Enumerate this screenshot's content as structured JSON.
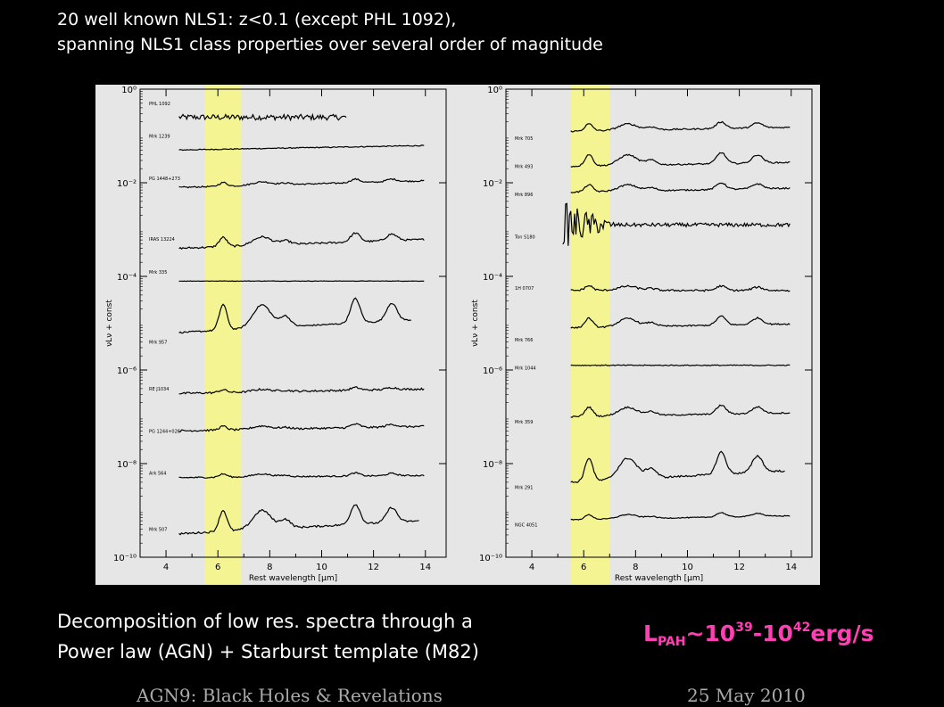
{
  "header": {
    "line1": "20 well known NLS1: z<0.1 (except PHL 1092),",
    "line2": "spanning NLS1 class properties over several order of magnitude"
  },
  "caption": {
    "line1": "Decomposition of low res. spectra through a",
    "line2": "Power law (AGN) + Starburst template (M82)"
  },
  "lpah": {
    "base": "L",
    "sub": "PAH",
    "tilde": "~10",
    "exp1": "39",
    "dash": "-10",
    "exp2": "42",
    "unit": "erg/s"
  },
  "footer": {
    "left": "AGN9: Black Holes & Revelations",
    "right": "25 May 2010"
  },
  "colors": {
    "highlight": "#f5f58a",
    "lpah": "#ff3fb4",
    "panel_bg": "#e6e6e6"
  },
  "chart_data": [
    {
      "type": "line",
      "panel": "left",
      "xlabel": "Rest wavelength [μm]",
      "ylabel": "νLν + const",
      "xlim": [
        3,
        14.8
      ],
      "ylim_log10": [
        -10,
        0
      ],
      "x_ticks": [
        4,
        6,
        8,
        10,
        12,
        14
      ],
      "x_tick_labels": [
        "4",
        "6",
        "8",
        "10",
        "12",
        "14"
      ],
      "y_ticks_log10": [
        0,
        -2,
        -4,
        -6,
        -8,
        -10
      ],
      "y_tick_labels": [
        "10⁰",
        "10⁻²",
        "10⁻⁴",
        "10⁻⁶",
        "10⁻⁸",
        "10⁻¹⁰"
      ],
      "highlight_x": [
        5.5,
        6.9
      ],
      "series": [
        {
          "name": "PHL 1092",
          "label_y": -0.3,
          "level": -0.6,
          "x_range": [
            4.5,
            11
          ],
          "slope": 0.0,
          "noise": 0.12,
          "pah": false
        },
        {
          "name": "Mrk 1239",
          "label_y": -1.0,
          "level": -1.3,
          "x_range": [
            4.5,
            14
          ],
          "slope": 0.01,
          "noise": 0.02,
          "pah": false
        },
        {
          "name": "PG 1448+273",
          "label_y": -1.9,
          "level": -2.1,
          "x_range": [
            4.5,
            14
          ],
          "slope": 0.015,
          "noise": 0.03,
          "pah": true,
          "pah_amp": 0.08
        },
        {
          "name": "IRAS 13224",
          "label_y": -3.2,
          "level": -3.4,
          "x_range": [
            4.5,
            14
          ],
          "slope": 0.02,
          "noise": 0.04,
          "pah": true,
          "pah_amp": 0.2
        },
        {
          "name": "Mrk 335",
          "label_y": -3.9,
          "level": -4.1,
          "x_range": [
            4.5,
            14
          ],
          "slope": 0.0,
          "noise": 0.01,
          "pah": false
        },
        {
          "name": "Mrk 957",
          "label_y": -5.4,
          "level": -5.2,
          "x_range": [
            4.5,
            13.5
          ],
          "slope": 0.03,
          "noise": 0.03,
          "pah": true,
          "pah_amp": 0.55
        },
        {
          "name": "RE J1034",
          "label_y": -6.4,
          "level": -6.5,
          "x_range": [
            4.5,
            14
          ],
          "slope": 0.01,
          "noise": 0.04,
          "pah": true,
          "pah_amp": 0.06
        },
        {
          "name": "PG 1244+026",
          "label_y": -7.3,
          "level": -7.3,
          "x_range": [
            4.5,
            14
          ],
          "slope": 0.01,
          "noise": 0.04,
          "pah": true,
          "pah_amp": 0.08
        },
        {
          "name": "Ark 564",
          "label_y": -8.2,
          "level": -8.3,
          "x_range": [
            4.5,
            14
          ],
          "slope": 0.005,
          "noise": 0.03,
          "pah": true,
          "pah_amp": 0.07
        },
        {
          "name": "Mrk 507",
          "label_y": -9.4,
          "level": -9.5,
          "x_range": [
            4.5,
            13.8
          ],
          "slope": 0.03,
          "noise": 0.04,
          "pah": true,
          "pah_amp": 0.45
        }
      ]
    },
    {
      "type": "line",
      "panel": "right",
      "xlabel": "Rest wavelength [μm]",
      "ylabel": "νLν + const",
      "xlim": [
        3,
        14.8
      ],
      "ylim_log10": [
        -10,
        0
      ],
      "x_ticks": [
        4,
        6,
        8,
        10,
        12,
        14
      ],
      "x_tick_labels": [
        "4",
        "6",
        "8",
        "10",
        "12",
        "14"
      ],
      "y_ticks_log10": [
        0,
        -2,
        -4,
        -6,
        -8,
        -10
      ],
      "y_tick_labels": [
        "10⁰",
        "10⁻²",
        "10⁻⁴",
        "10⁻⁶",
        "10⁻⁸",
        "10⁻¹⁰"
      ],
      "highlight_x": [
        5.5,
        7.0
      ],
      "series": [
        {
          "name": "Mrk 705",
          "label_y": -1.05,
          "level": -0.9,
          "x_range": [
            5.5,
            14
          ],
          "slope": 0.01,
          "noise": 0.03,
          "pah": true,
          "pah_amp": 0.15
        },
        {
          "name": "Mrk 493",
          "label_y": -1.65,
          "level": -1.65,
          "x_range": [
            5.5,
            14
          ],
          "slope": 0.01,
          "noise": 0.03,
          "pah": true,
          "pah_amp": 0.25
        },
        {
          "name": "Mrk 896",
          "label_y": -2.25,
          "level": -2.2,
          "x_range": [
            5.5,
            14
          ],
          "slope": 0.01,
          "noise": 0.03,
          "pah": true,
          "pah_amp": 0.15
        },
        {
          "name": "Ton S180",
          "label_y": -3.15,
          "level": -2.9,
          "x_range": [
            5.2,
            14
          ],
          "slope": 0.0,
          "noise": 0.08,
          "pah": false,
          "noisy_start": true
        },
        {
          "name": "1H 0707",
          "label_y": -4.25,
          "level": -4.3,
          "x_range": [
            5.5,
            14
          ],
          "slope": 0.0,
          "noise": 0.04,
          "pah": true,
          "pah_amp": 0.1
        },
        {
          "name": "Mrk 766",
          "label_y": -5.35,
          "level": -5.1,
          "x_range": [
            5.5,
            14
          ],
          "slope": 0.01,
          "noise": 0.03,
          "pah": true,
          "pah_amp": 0.2
        },
        {
          "name": "Mrk 1044",
          "label_y": -5.95,
          "level": -5.9,
          "x_range": [
            5.5,
            14
          ],
          "slope": 0.0,
          "noise": 0.02,
          "pah": false
        },
        {
          "name": "Mrk 359",
          "label_y": -7.1,
          "level": -7.0,
          "x_range": [
            5.5,
            14
          ],
          "slope": 0.01,
          "noise": 0.03,
          "pah": true,
          "pah_amp": 0.2
        },
        {
          "name": "Mrk 291",
          "label_y": -8.5,
          "level": -8.4,
          "x_range": [
            5.5,
            13.8
          ],
          "slope": 0.03,
          "noise": 0.04,
          "pah": true,
          "pah_amp": 0.5
        },
        {
          "name": "NGC 4051",
          "label_y": -9.3,
          "level": -9.2,
          "x_range": [
            5.5,
            14
          ],
          "slope": 0.01,
          "noise": 0.02,
          "pah": true,
          "pah_amp": 0.1
        }
      ]
    }
  ]
}
